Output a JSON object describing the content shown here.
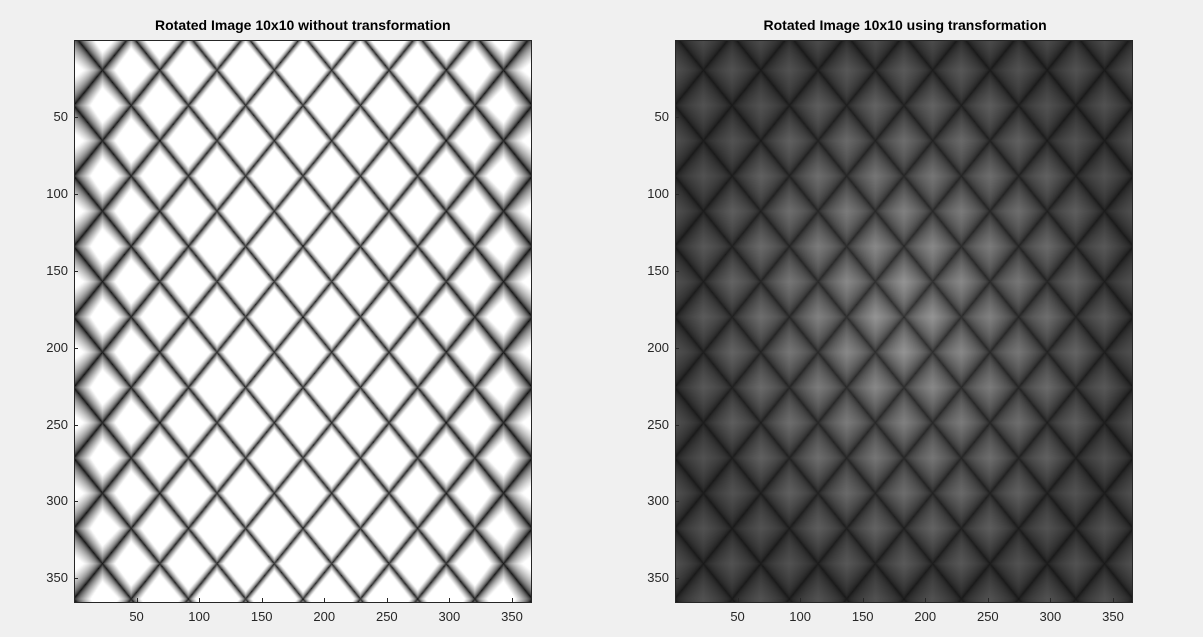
{
  "window": {
    "background": "#f0f0f0"
  },
  "chart_data": [
    {
      "type": "heatmap",
      "title": "Rotated Image 10x10 without transformation",
      "colormap": "gray",
      "variant": "saturated",
      "xlim": [
        0,
        366
      ],
      "ylim": [
        0,
        366
      ],
      "x_ticks": [
        50,
        100,
        150,
        200,
        250,
        300,
        350
      ],
      "y_ticks": [
        50,
        100,
        150,
        200,
        250,
        300,
        350
      ],
      "x_tick_labels": [
        "50",
        "100",
        "150",
        "200",
        "250",
        "300",
        "350"
      ],
      "y_tick_labels": [
        "50",
        "100",
        "150",
        "200",
        "250",
        "300",
        "350"
      ],
      "y_direction": "reverse"
    },
    {
      "type": "heatmap",
      "title": "Rotated Image 10x10 using transformation",
      "colormap": "gray",
      "variant": "scaled",
      "xlim": [
        0,
        366
      ],
      "ylim": [
        0,
        366
      ],
      "x_ticks": [
        50,
        100,
        150,
        200,
        250,
        300,
        350
      ],
      "y_ticks": [
        50,
        100,
        150,
        200,
        250,
        300,
        350
      ],
      "x_tick_labels": [
        "50",
        "100",
        "150",
        "200",
        "250",
        "300",
        "350"
      ],
      "y_tick_labels": [
        "50",
        "100",
        "150",
        "200",
        "250",
        "300",
        "350"
      ],
      "y_direction": "reverse"
    }
  ]
}
